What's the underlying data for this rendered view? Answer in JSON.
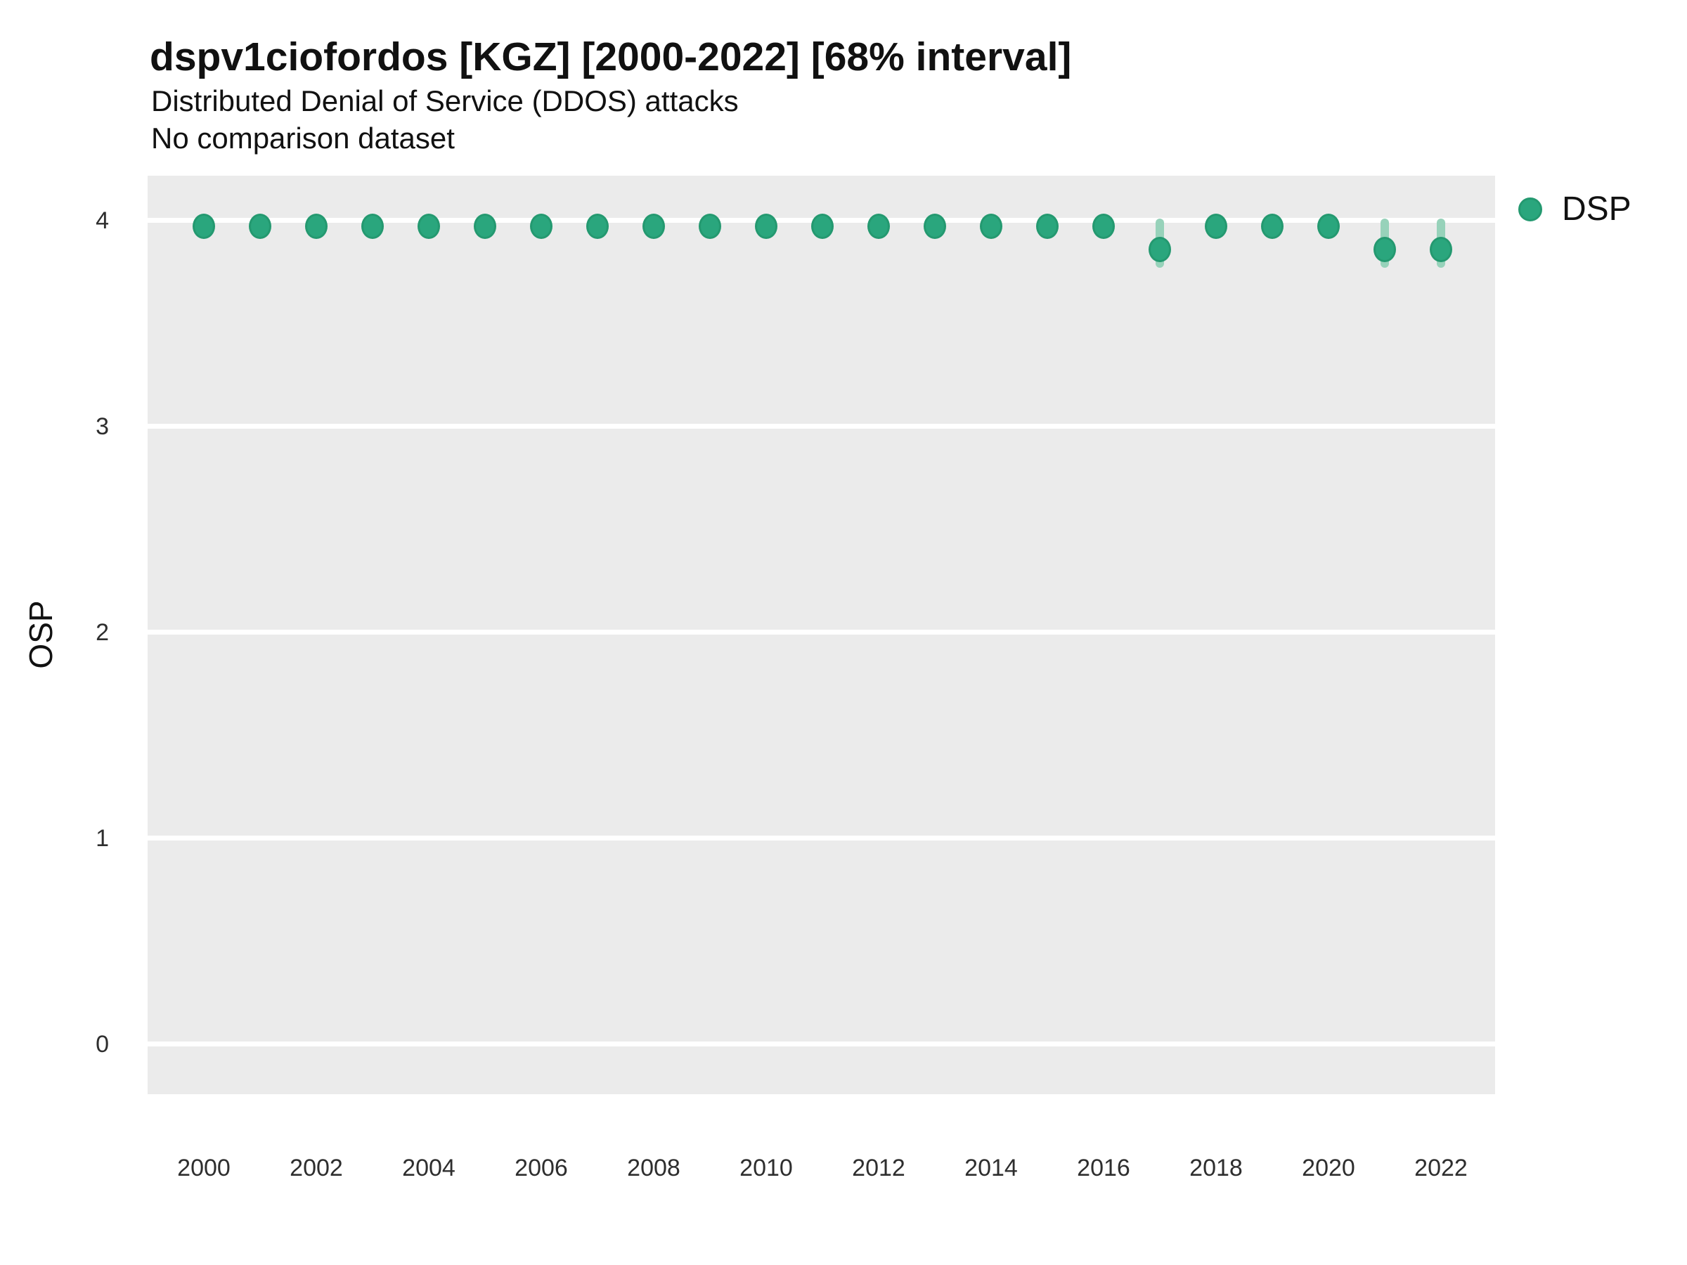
{
  "header": {
    "title": "dspv1ciofordos [KGZ] [2000-2022] [68% interval]",
    "subtitle": "Distributed Denial of Service (DDOS) attacks",
    "note": "No comparison dataset"
  },
  "axes": {
    "y_title": "OSP",
    "y_tick_values": [
      4,
      3,
      2,
      1,
      0
    ],
    "x_tick_values": [
      2000,
      2002,
      2004,
      2006,
      2008,
      2010,
      2012,
      2014,
      2016,
      2018,
      2020,
      2022
    ]
  },
  "legend": {
    "items": [
      {
        "label": "DSP",
        "color": "#2aa67d"
      }
    ]
  },
  "colors": {
    "panel_background": "#ebebeb",
    "gridline": "#ffffff",
    "point": "#2aa67d",
    "error_bar": "#97d2ba",
    "text": "#111111",
    "tick_text": "#2e2e2e"
  },
  "chart_data": {
    "type": "scatter",
    "title": "dspv1ciofordos [KGZ] [2000-2022] [68% interval]",
    "subtitle": "Distributed Denial of Service (DDOS) attacks",
    "note": "No comparison dataset",
    "xlabel": "",
    "ylabel": "OSP",
    "interval": "68%",
    "xlim": [
      1999,
      2023
    ],
    "ylim": [
      -0.25,
      4.25
    ],
    "grid": "major-horizontal-white-on-gray",
    "legend_position": "right",
    "series": [
      {
        "name": "DSP",
        "x": [
          2000,
          2001,
          2002,
          2003,
          2004,
          2005,
          2006,
          2007,
          2008,
          2009,
          2010,
          2011,
          2012,
          2013,
          2014,
          2015,
          2016,
          2017,
          2018,
          2019,
          2020,
          2021,
          2022
        ],
        "y": [
          3.97,
          3.97,
          3.97,
          3.97,
          3.97,
          3.97,
          3.97,
          3.97,
          3.97,
          3.97,
          3.97,
          3.97,
          3.97,
          3.97,
          3.97,
          3.97,
          3.97,
          3.86,
          3.97,
          3.97,
          3.97,
          3.86,
          3.86
        ],
        "ci_low": [
          null,
          null,
          null,
          null,
          null,
          null,
          null,
          null,
          null,
          null,
          null,
          null,
          null,
          null,
          null,
          null,
          null,
          3.77,
          null,
          null,
          null,
          3.77,
          3.77
        ],
        "ci_high": [
          null,
          null,
          null,
          null,
          null,
          null,
          null,
          null,
          null,
          null,
          null,
          null,
          null,
          null,
          null,
          null,
          null,
          4.01,
          null,
          null,
          null,
          4.01,
          4.01
        ]
      }
    ]
  }
}
